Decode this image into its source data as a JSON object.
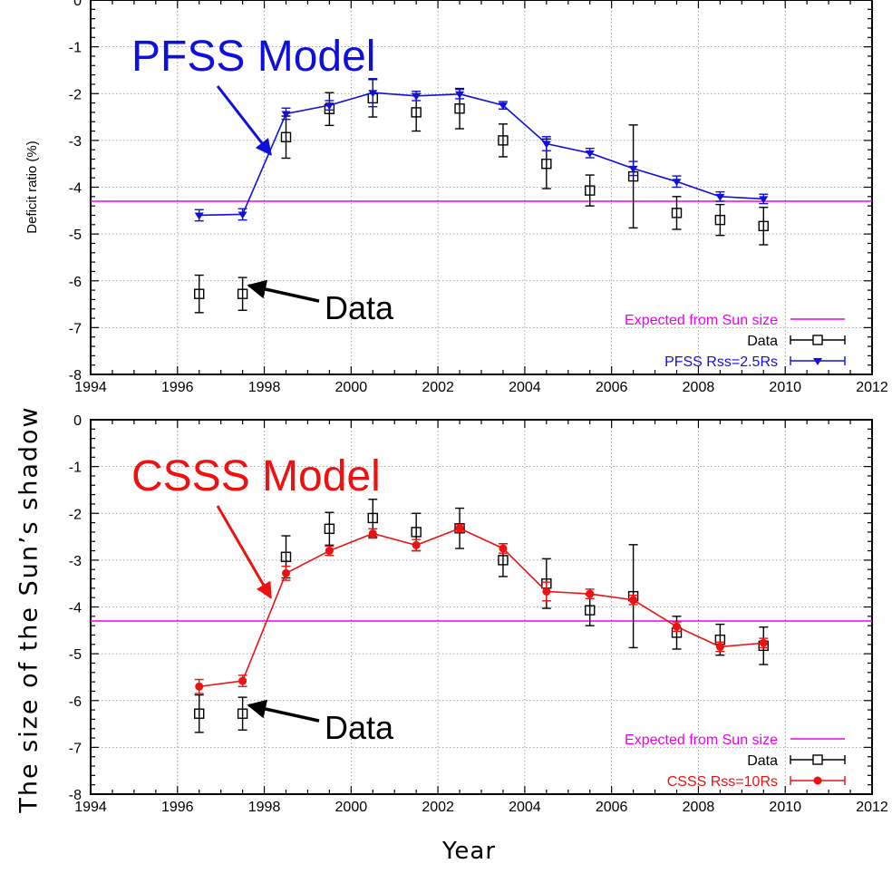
{
  "figure": {
    "shared_ylabel": "The size of the Sun’s shadow",
    "xlabel": "Year",
    "colors": {
      "pfss": "#1010dd",
      "csss": "#ee1111",
      "data": "#000000",
      "sun": "#ee00ee"
    }
  },
  "chart_data": [
    {
      "type": "line",
      "panel": "top",
      "title": "PFSS Model",
      "ylabel": "Deficit ratio (%)",
      "xlim": [
        1994,
        2012
      ],
      "ylim": [
        -8,
        0
      ],
      "xticks": [
        "1994",
        "1996",
        "1998",
        "2000",
        "2002",
        "2004",
        "2006",
        "2008",
        "2010",
        "2012"
      ],
      "yticks": [
        "-8",
        "-7",
        "-6",
        "-5",
        "-4",
        "-3",
        "-2",
        "-1",
        "0"
      ],
      "grid": true,
      "legend_position": "bottom-right",
      "legend": [
        "Expected from Sun size",
        "Data",
        "PFSS Rss=2.5Rs"
      ],
      "reference_line": {
        "name": "Expected from Sun size",
        "y": -4.3
      },
      "annotations": [
        {
          "text": "PFSS Model",
          "arrow_to": [
            1998.15,
            -3.3
          ]
        },
        {
          "text": "Data",
          "arrow_to": [
            1997.6,
            -6.1
          ]
        }
      ],
      "series": [
        {
          "name": "Data",
          "marker": "open-square",
          "x": [
            1996.5,
            1997.5,
            1998.5,
            1999.5,
            2000.5,
            2001.5,
            2002.5,
            2003.5,
            2004.5,
            2005.5,
            2006.5,
            2007.5,
            2008.5,
            2009.5
          ],
          "y": [
            -6.28,
            -6.28,
            -2.93,
            -2.33,
            -2.1,
            -2.4,
            -2.32,
            -3.0,
            -3.5,
            -4.07,
            -3.77,
            -4.55,
            -4.7,
            -4.83
          ],
          "yerr": [
            0.4,
            0.35,
            0.45,
            0.35,
            0.4,
            0.4,
            0.43,
            0.35,
            0.53,
            0.33,
            1.1,
            0.35,
            0.33,
            0.4
          ]
        },
        {
          "name": "PFSS Rss=2.5Rs",
          "marker": "filled-triangle",
          "x": [
            1996.5,
            1997.5,
            1998.5,
            1999.5,
            2000.5,
            2001.5,
            2002.5,
            2003.5,
            2004.5,
            2005.5,
            2006.5,
            2007.5,
            2008.5,
            2009.5
          ],
          "y": [
            -4.6,
            -4.58,
            -2.43,
            -2.25,
            -1.98,
            -2.05,
            -2.01,
            -2.25,
            -3.07,
            -3.27,
            -3.6,
            -3.88,
            -4.2,
            -4.25
          ],
          "yerr": [
            0.12,
            0.12,
            0.12,
            0.1,
            0.3,
            0.1,
            0.1,
            0.08,
            0.15,
            0.1,
            0.15,
            0.12,
            0.1,
            0.1
          ]
        }
      ]
    },
    {
      "type": "line",
      "panel": "bottom",
      "title": "CSSS Model",
      "xlim": [
        1994,
        2012
      ],
      "ylim": [
        -8,
        0
      ],
      "xticks": [
        "1994",
        "1996",
        "1998",
        "2000",
        "2002",
        "2004",
        "2006",
        "2008",
        "2010",
        "2012"
      ],
      "yticks": [
        "-8",
        "-7",
        "-6",
        "-5",
        "-4",
        "-3",
        "-2",
        "-1",
        "0"
      ],
      "grid": true,
      "legend_position": "bottom-right",
      "legend": [
        "Expected from Sun size",
        "Data",
        "CSSS Rss=10Rs"
      ],
      "reference_line": {
        "name": "Expected from Sun size",
        "y": -4.3
      },
      "annotations": [
        {
          "text": "CSSS Model",
          "arrow_to": [
            1998.15,
            -3.8
          ]
        },
        {
          "text": "Data",
          "arrow_to": [
            1997.6,
            -6.1
          ]
        }
      ],
      "series": [
        {
          "name": "Data",
          "marker": "open-square",
          "x": [
            1996.5,
            1997.5,
            1998.5,
            1999.5,
            2000.5,
            2001.5,
            2002.5,
            2003.5,
            2004.5,
            2005.5,
            2006.5,
            2007.5,
            2008.5,
            2009.5
          ],
          "y": [
            -6.28,
            -6.28,
            -2.93,
            -2.33,
            -2.1,
            -2.4,
            -2.32,
            -3.0,
            -3.5,
            -4.07,
            -3.77,
            -4.55,
            -4.7,
            -4.83
          ],
          "yerr": [
            0.4,
            0.35,
            0.45,
            0.35,
            0.4,
            0.4,
            0.43,
            0.35,
            0.53,
            0.33,
            1.1,
            0.35,
            0.33,
            0.4
          ]
        },
        {
          "name": "CSSS Rss=10Rs",
          "marker": "filled-circle",
          "x": [
            1996.5,
            1997.5,
            1998.5,
            1999.5,
            2000.5,
            2001.5,
            2002.5,
            2003.5,
            2004.5,
            2005.5,
            2006.5,
            2007.5,
            2008.5,
            2009.5
          ],
          "y": [
            -5.7,
            -5.58,
            -3.28,
            -2.8,
            -2.43,
            -2.68,
            -2.32,
            -2.75,
            -3.67,
            -3.72,
            -3.85,
            -4.42,
            -4.85,
            -4.77
          ],
          "yerr": [
            0.15,
            0.12,
            0.15,
            0.1,
            0.1,
            0.12,
            0.08,
            0.1,
            0.2,
            0.1,
            0.1,
            0.1,
            0.1,
            0.1
          ]
        }
      ]
    }
  ]
}
